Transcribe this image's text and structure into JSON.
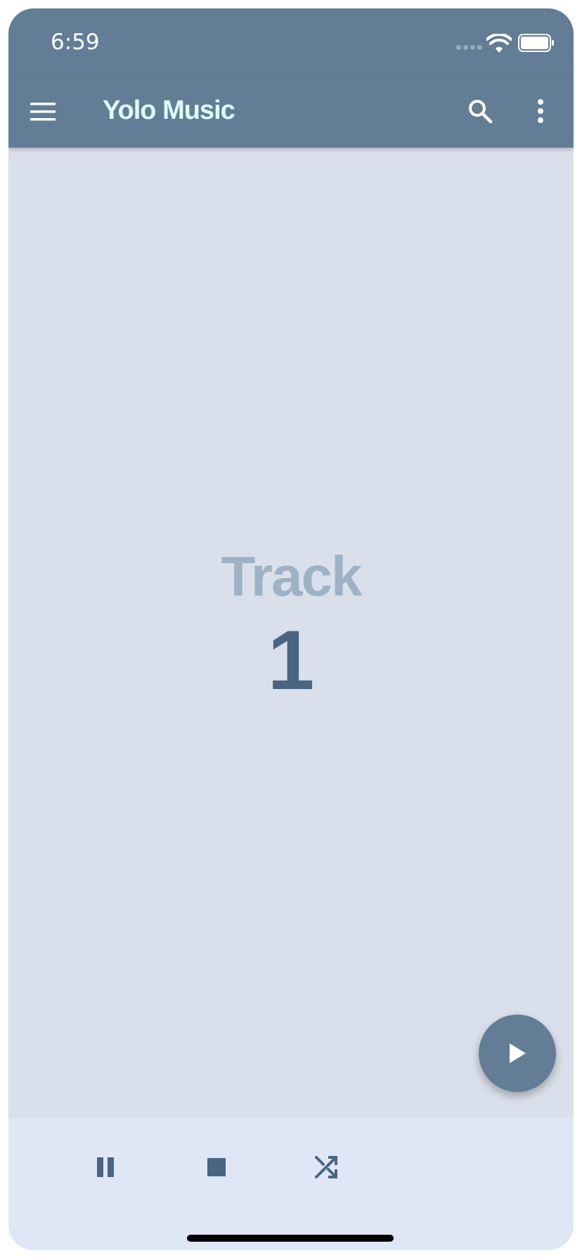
{
  "status_bar": {
    "time": "6:59"
  },
  "app_bar": {
    "title": "Yolo Music",
    "menu_icon": "hamburger-menu-icon",
    "search_icon": "search-icon",
    "more_icon": "more-vertical-icon"
  },
  "main": {
    "track_label": "Track",
    "track_number": "1"
  },
  "fab": {
    "icon": "play-icon"
  },
  "controls": {
    "pause_icon": "pause-icon",
    "stop_icon": "stop-icon",
    "shuffle_icon": "shuffle-icon"
  },
  "colors": {
    "app_bar": "#637d97",
    "background": "#d9e0eb",
    "title": "#dff9ff",
    "track_label": "#9fb1c5",
    "track_number": "#4a6582",
    "bottom_bar": "#dfe6f5"
  }
}
